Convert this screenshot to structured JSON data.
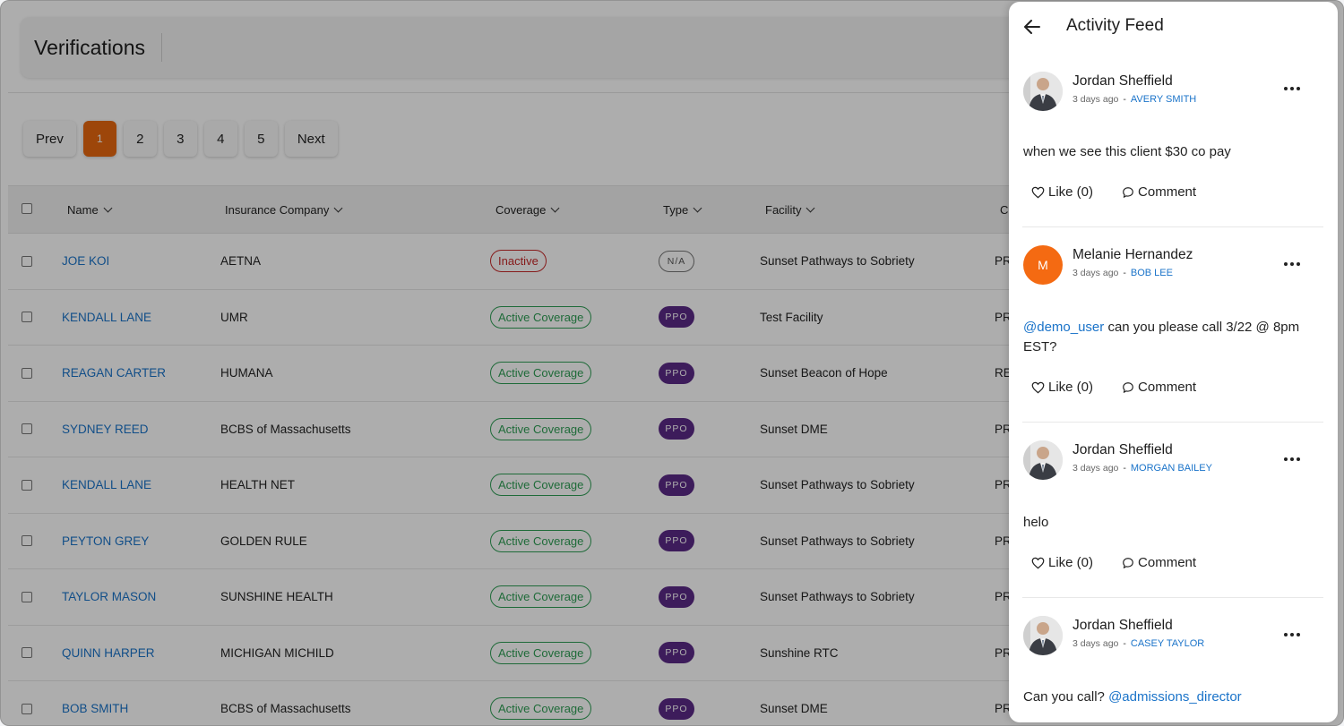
{
  "page": {
    "title": "Verifications"
  },
  "pagination": {
    "prev": "Prev",
    "next": "Next",
    "pages": [
      "1",
      "2",
      "3",
      "4",
      "5"
    ],
    "current": "1"
  },
  "table": {
    "headers": {
      "name": "Name",
      "insurance": "Insurance Company",
      "coverage": "Coverage",
      "type": "Type",
      "facility": "Facility",
      "clipped": "Cl"
    },
    "rows": [
      {
        "name": "JOE KOI",
        "insurance": "AETNA",
        "coverage": "Inactive",
        "type": "N/A",
        "facility": "Sunset Pathways to Sobriety",
        "clipped": "PR"
      },
      {
        "name": "KENDALL LANE",
        "insurance": "UMR",
        "coverage": "Active Coverage",
        "type": "PPO",
        "facility": "Test Facility",
        "clipped": "PR"
      },
      {
        "name": "REAGAN CARTER",
        "insurance": "HUMANA",
        "coverage": "Active Coverage",
        "type": "PPO",
        "facility": "Sunset Beacon of Hope",
        "clipped": "RE"
      },
      {
        "name": "SYDNEY REED",
        "insurance": "BCBS of Massachusetts",
        "coverage": "Active Coverage",
        "type": "PPO",
        "facility": "Sunset DME",
        "clipped": "PR"
      },
      {
        "name": "KENDALL LANE",
        "insurance": "HEALTH NET",
        "coverage": "Active Coverage",
        "type": "PPO",
        "facility": "Sunset Pathways to Sobriety",
        "clipped": "PR"
      },
      {
        "name": "PEYTON GREY",
        "insurance": "GOLDEN RULE",
        "coverage": "Active Coverage",
        "type": "PPO",
        "facility": "Sunset Pathways to Sobriety",
        "clipped": "PR"
      },
      {
        "name": "TAYLOR MASON",
        "insurance": "SUNSHINE HEALTH",
        "coverage": "Active Coverage",
        "type": "PPO",
        "facility": "Sunset Pathways to Sobriety",
        "clipped": "PR"
      },
      {
        "name": "QUINN HARPER",
        "insurance": "MICHIGAN MICHILD",
        "coverage": "Active Coverage",
        "type": "PPO",
        "facility": "Sunshine RTC",
        "clipped": "PR"
      },
      {
        "name": "BOB SMITH",
        "insurance": "BCBS of Massachusetts",
        "coverage": "Active Coverage",
        "type": "PPO",
        "facility": "Sunset DME",
        "clipped": "PR"
      }
    ]
  },
  "feed": {
    "title": "Activity Feed",
    "like_label": "Like (0)",
    "comment_label": "Comment",
    "posts": [
      {
        "author": "Jordan Sheffield",
        "time": "3 days ago",
        "target": "AVERY SMITH",
        "avatar_letter": "",
        "text_before": "when we see this client $30 co pay",
        "mention": "",
        "text_after": ""
      },
      {
        "author": "Melanie Hernandez",
        "time": "3 days ago",
        "target": "BOB LEE",
        "avatar_letter": "M",
        "text_before": "",
        "mention": "@demo_user",
        "text_after": " can you please call 3/22 @ 8pm EST?"
      },
      {
        "author": "Jordan Sheffield",
        "time": "3 days ago",
        "target": "MORGAN BAILEY",
        "avatar_letter": "",
        "text_before": "helo",
        "mention": "",
        "text_after": ""
      },
      {
        "author": "Jordan Sheffield",
        "time": "3 days ago",
        "target": "CASEY TAYLOR",
        "avatar_letter": "",
        "text_before": "Can you call? ",
        "mention": "@admissions_director",
        "text_after": ""
      }
    ]
  },
  "colors": {
    "accent": "#e7670f",
    "link": "#1a73c9",
    "active_coverage": "#2f9e55",
    "inactive_coverage": "#c62828",
    "ppo_badge": "#5b2a86",
    "avatar_orange": "#f46a12"
  },
  "icons": [
    "back-arrow-icon",
    "more-horizontal-icon",
    "heart-icon",
    "comment-icon",
    "chevron-down-icon"
  ]
}
